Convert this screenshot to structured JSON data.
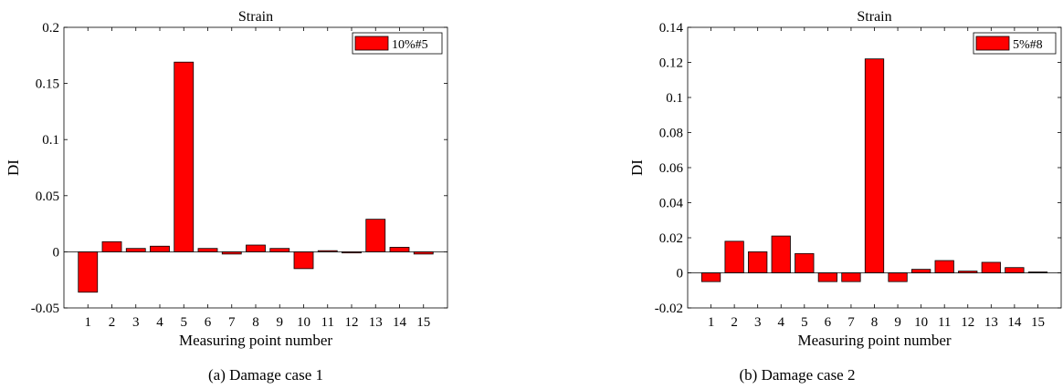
{
  "chart_data": [
    {
      "type": "bar",
      "title": "Strain",
      "xlabel": "Measuring point number",
      "ylabel": "DI",
      "categories": [
        "1",
        "2",
        "3",
        "4",
        "5",
        "6",
        "7",
        "8",
        "9",
        "10",
        "11",
        "12",
        "13",
        "14",
        "15"
      ],
      "series": [
        {
          "name": "10%#5",
          "color": "#ff0000",
          "values": [
            -0.036,
            0.009,
            0.003,
            0.005,
            0.169,
            0.003,
            -0.002,
            0.006,
            0.003,
            -0.015,
            0.001,
            -0.001,
            0.029,
            0.004,
            -0.002
          ]
        }
      ],
      "ylim": [
        -0.05,
        0.2
      ],
      "yticks": [
        -0.05,
        0,
        0.05,
        0.1,
        0.15,
        0.2
      ],
      "ytick_labels": [
        "-0.05",
        "0",
        "0.05",
        "0.1",
        "0.15",
        "0.2"
      ],
      "legend": "top-right",
      "grid": false,
      "caption": "(a) Damage case 1"
    },
    {
      "type": "bar",
      "title": "Strain",
      "xlabel": "Measuring point number",
      "ylabel": "DI",
      "categories": [
        "1",
        "2",
        "3",
        "4",
        "5",
        "6",
        "7",
        "8",
        "9",
        "10",
        "11",
        "12",
        "13",
        "14",
        "15"
      ],
      "series": [
        {
          "name": "5%#8",
          "color": "#ff0000",
          "values": [
            -0.005,
            0.018,
            0.012,
            0.021,
            0.011,
            -0.005,
            -0.005,
            0.122,
            -0.005,
            0.002,
            0.007,
            0.001,
            0.006,
            0.003,
            0.0005
          ]
        }
      ],
      "ylim": [
        -0.02,
        0.14
      ],
      "yticks": [
        -0.02,
        0,
        0.02,
        0.04,
        0.06,
        0.08,
        0.1,
        0.12,
        0.14
      ],
      "ytick_labels": [
        "-0.02",
        "0",
        "0.02",
        "0.04",
        "0.06",
        "0.08",
        "0.1",
        "0.12",
        "0.14"
      ],
      "legend": "top-right",
      "grid": false,
      "caption": "(b) Damage case 2"
    }
  ]
}
